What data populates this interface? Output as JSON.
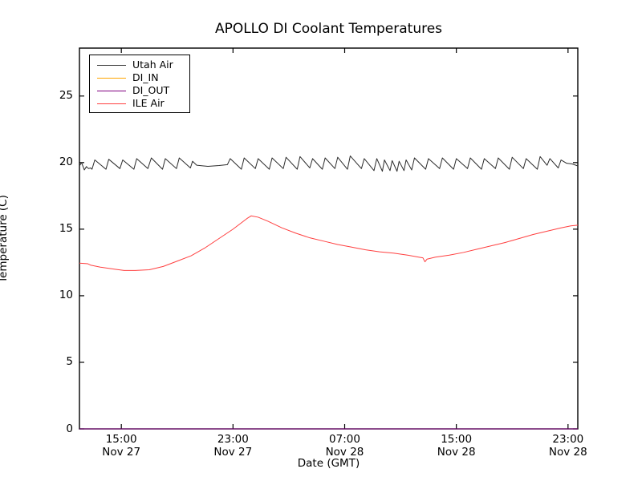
{
  "figure": {
    "title": "APOLLO DI Coolant Temperatures",
    "background": "#ffffff"
  },
  "legend": {
    "position": "upper left",
    "items": [
      {
        "label": "Utah Air",
        "color": "#3a3a3a"
      },
      {
        "label": "DI_IN",
        "color": "#ffa500"
      },
      {
        "label": "DI_OUT",
        "color": "#800080"
      },
      {
        "label": "ILE Air",
        "color": "#ff4040"
      }
    ]
  },
  "chart_data": {
    "type": "line",
    "title": "APOLLO DI Coolant Temperatures",
    "xlabel": "Date (GMT)",
    "ylabel": "Temperature (C)",
    "grid": false,
    "legend_position": "upper left",
    "x_axis": {
      "unit": "hours since Nov 27 12:00 GMT",
      "min": 0,
      "max": 35.7,
      "ticks": [
        {
          "t": 3,
          "line1": "15:00",
          "line2": "Nov 27"
        },
        {
          "t": 11,
          "line1": "23:00",
          "line2": "Nov 27"
        },
        {
          "t": 19,
          "line1": "07:00",
          "line2": "Nov 28"
        },
        {
          "t": 27,
          "line1": "15:00",
          "line2": "Nov 28"
        },
        {
          "t": 35,
          "line1": "23:00",
          "line2": "Nov 28"
        }
      ]
    },
    "y_axis": {
      "min": 0,
      "max": 28.6,
      "ticks": [
        0,
        5,
        10,
        15,
        20,
        25
      ]
    },
    "series": [
      {
        "name": "Utah Air",
        "color": "#2b2b2b",
        "width": 1,
        "points": [
          [
            0,
            19.75
          ],
          [
            0.15,
            20.0
          ],
          [
            0.35,
            19.45
          ],
          [
            0.5,
            19.7
          ],
          [
            0.65,
            19.55
          ],
          [
            0.8,
            19.6
          ],
          [
            0.9,
            19.5
          ],
          [
            1.1,
            20.2
          ],
          [
            1.9,
            19.5
          ],
          [
            2.1,
            20.25
          ],
          [
            2.9,
            19.55
          ],
          [
            3.1,
            20.2
          ],
          [
            3.9,
            19.5
          ],
          [
            4.1,
            20.3
          ],
          [
            4.9,
            19.55
          ],
          [
            5.15,
            20.35
          ],
          [
            5.95,
            19.5
          ],
          [
            6.15,
            20.3
          ],
          [
            6.95,
            19.55
          ],
          [
            7.15,
            20.35
          ],
          [
            7.95,
            19.6
          ],
          [
            8.1,
            20.1
          ],
          [
            8.4,
            19.8
          ],
          [
            9.2,
            19.72
          ],
          [
            10.0,
            19.78
          ],
          [
            10.6,
            19.85
          ],
          [
            10.8,
            20.3
          ],
          [
            11.6,
            19.5
          ],
          [
            11.8,
            20.35
          ],
          [
            12.6,
            19.55
          ],
          [
            12.8,
            20.3
          ],
          [
            13.6,
            19.5
          ],
          [
            13.8,
            20.35
          ],
          [
            14.6,
            19.55
          ],
          [
            14.8,
            20.4
          ],
          [
            15.6,
            19.5
          ],
          [
            15.8,
            20.45
          ],
          [
            16.5,
            19.6
          ],
          [
            16.7,
            20.3
          ],
          [
            17.4,
            19.5
          ],
          [
            17.6,
            20.35
          ],
          [
            18.3,
            19.55
          ],
          [
            18.5,
            20.4
          ],
          [
            19.2,
            19.5
          ],
          [
            19.4,
            20.5
          ],
          [
            20.2,
            19.55
          ],
          [
            20.4,
            20.3
          ],
          [
            21.1,
            19.4
          ],
          [
            21.3,
            20.3
          ],
          [
            21.7,
            19.35
          ],
          [
            21.85,
            20.2
          ],
          [
            22.25,
            19.4
          ],
          [
            22.4,
            20.15
          ],
          [
            22.75,
            19.35
          ],
          [
            22.9,
            20.1
          ],
          [
            23.25,
            19.4
          ],
          [
            23.4,
            20.2
          ],
          [
            23.8,
            19.45
          ],
          [
            24.0,
            20.35
          ],
          [
            24.8,
            19.5
          ],
          [
            25.0,
            20.3
          ],
          [
            25.8,
            19.55
          ],
          [
            26.0,
            20.35
          ],
          [
            26.8,
            19.5
          ],
          [
            27.0,
            20.3
          ],
          [
            27.8,
            19.55
          ],
          [
            28.0,
            20.35
          ],
          [
            28.8,
            19.5
          ],
          [
            29.0,
            20.3
          ],
          [
            29.8,
            19.55
          ],
          [
            30.0,
            20.35
          ],
          [
            30.8,
            19.5
          ],
          [
            31.0,
            20.4
          ],
          [
            31.8,
            19.55
          ],
          [
            32.0,
            20.3
          ],
          [
            32.8,
            19.5
          ],
          [
            33.0,
            20.45
          ],
          [
            33.5,
            19.8
          ],
          [
            33.7,
            20.3
          ],
          [
            34.3,
            19.6
          ],
          [
            34.5,
            20.2
          ],
          [
            34.9,
            19.95
          ],
          [
            35.3,
            19.9
          ],
          [
            35.7,
            19.75
          ]
        ]
      },
      {
        "name": "DI_IN",
        "color": "#ffa500",
        "width": 1,
        "points": [
          [
            0,
            0
          ],
          [
            35.7,
            0
          ]
        ]
      },
      {
        "name": "DI_OUT",
        "color": "#800080",
        "width": 1,
        "points": [
          [
            0,
            0
          ],
          [
            35.7,
            0
          ]
        ]
      },
      {
        "name": "ILE Air",
        "color": "#ff4040",
        "width": 1,
        "points": [
          [
            0,
            12.45
          ],
          [
            0.6,
            12.4
          ],
          [
            0.8,
            12.3
          ],
          [
            1.5,
            12.15
          ],
          [
            2.5,
            12.0
          ],
          [
            3.2,
            11.9
          ],
          [
            4.0,
            11.9
          ],
          [
            5.0,
            11.95
          ],
          [
            6.0,
            12.2
          ],
          [
            7.0,
            12.6
          ],
          [
            8.0,
            13.0
          ],
          [
            9.0,
            13.6
          ],
          [
            10.0,
            14.3
          ],
          [
            11.0,
            15.0
          ],
          [
            12.0,
            15.8
          ],
          [
            12.3,
            16.0
          ],
          [
            12.8,
            15.9
          ],
          [
            13.5,
            15.6
          ],
          [
            14.5,
            15.1
          ],
          [
            15.5,
            14.7
          ],
          [
            16.5,
            14.35
          ],
          [
            17.5,
            14.1
          ],
          [
            18.5,
            13.85
          ],
          [
            19.5,
            13.65
          ],
          [
            20.5,
            13.45
          ],
          [
            21.5,
            13.3
          ],
          [
            22.5,
            13.2
          ],
          [
            23.5,
            13.05
          ],
          [
            24.3,
            12.9
          ],
          [
            24.6,
            12.85
          ],
          [
            24.75,
            12.55
          ],
          [
            24.9,
            12.75
          ],
          [
            25.5,
            12.9
          ],
          [
            26.5,
            13.05
          ],
          [
            27.5,
            13.25
          ],
          [
            28.5,
            13.5
          ],
          [
            29.5,
            13.75
          ],
          [
            30.5,
            14.0
          ],
          [
            31.5,
            14.3
          ],
          [
            32.5,
            14.6
          ],
          [
            33.5,
            14.85
          ],
          [
            34.5,
            15.1
          ],
          [
            35.2,
            15.25
          ],
          [
            35.7,
            15.3
          ]
        ]
      }
    ]
  }
}
